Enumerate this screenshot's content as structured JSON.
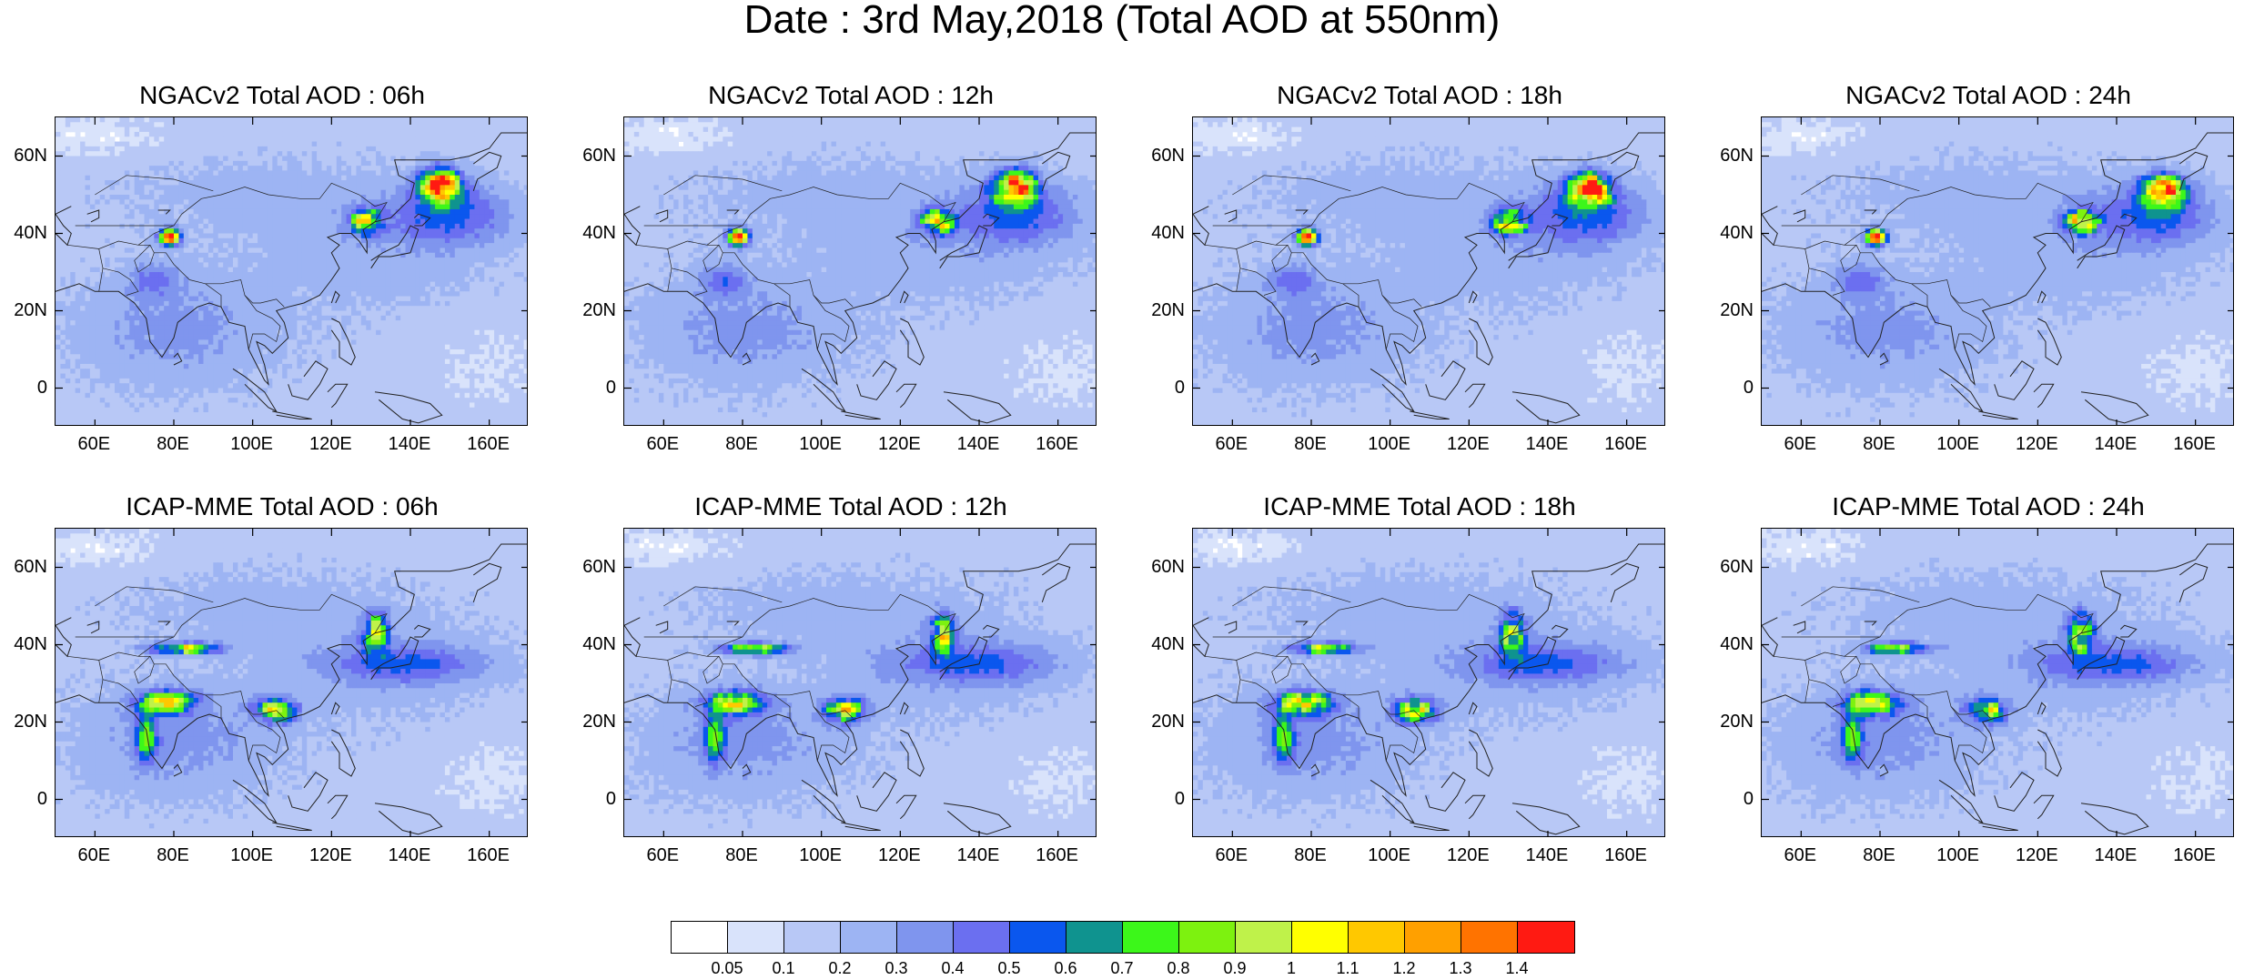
{
  "figure": {
    "title": "Date : 3rd May,2018 (Total AOD at 550nm)"
  },
  "panels": [
    {
      "title": "NGACv2 Total AOD : 06h",
      "model": "ngac",
      "hour": 6
    },
    {
      "title": "NGACv2 Total AOD : 12h",
      "model": "ngac",
      "hour": 12
    },
    {
      "title": "NGACv2 Total AOD : 18h",
      "model": "ngac",
      "hour": 18
    },
    {
      "title": "NGACv2 Total AOD : 24h",
      "model": "ngac",
      "hour": 24
    },
    {
      "title": "ICAP-MME Total AOD : 06h",
      "model": "icap",
      "hour": 6
    },
    {
      "title": "ICAP-MME Total AOD : 12h",
      "model": "icap",
      "hour": 12
    },
    {
      "title": "ICAP-MME Total AOD : 18h",
      "model": "icap",
      "hour": 18
    },
    {
      "title": "ICAP-MME Total AOD : 24h",
      "model": "icap",
      "hour": 24
    }
  ],
  "map_extent": {
    "lon_min": 50,
    "lon_max": 170,
    "lat_min": -10,
    "lat_max": 70
  },
  "lat_ticks": [
    {
      "value": 60,
      "label": "60N"
    },
    {
      "value": 40,
      "label": "40N"
    },
    {
      "value": 20,
      "label": "20N"
    },
    {
      "value": 0,
      "label": "0"
    }
  ],
  "lon_ticks": [
    {
      "value": 60,
      "label": "60E"
    },
    {
      "value": 80,
      "label": "80E"
    },
    {
      "value": 100,
      "label": "100E"
    },
    {
      "value": 120,
      "label": "120E"
    },
    {
      "value": 140,
      "label": "140E"
    },
    {
      "value": 160,
      "label": "160E"
    }
  ],
  "colorbar": {
    "labels": [
      "0.05",
      "0.1",
      "0.2",
      "0.3",
      "0.4",
      "0.5",
      "0.6",
      "0.7",
      "0.8",
      "0.9",
      "1",
      "1.1",
      "1.2",
      "1.3",
      "1.4"
    ],
    "colors": [
      "#ffffff",
      "#d9e3fb",
      "#b8c8f6",
      "#9db4f3",
      "#7f95ee",
      "#6b6ff0",
      "#0a57ee",
      "#0f938f",
      "#3cf71a",
      "#7df20f",
      "#bff24a",
      "#ffff00",
      "#ffc800",
      "#ffa000",
      "#ff7300",
      "#ff1a12"
    ]
  }
}
